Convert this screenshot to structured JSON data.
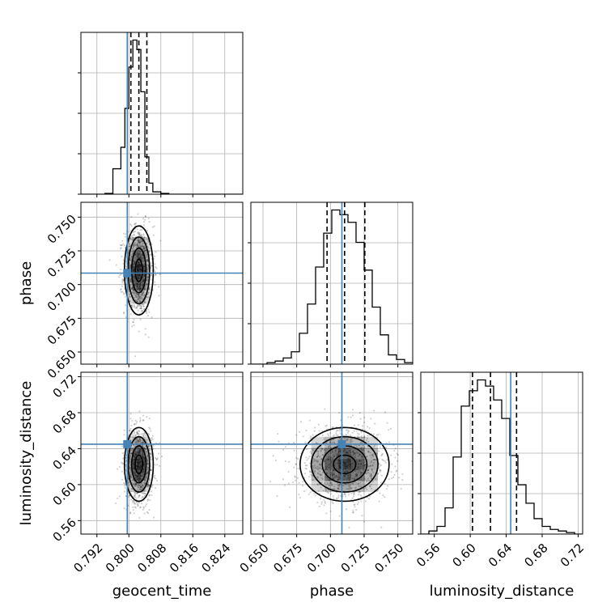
{
  "chart_data": {
    "type": "corner",
    "parameters": [
      "geocent_time",
      "phase",
      "luminosity_distance"
    ],
    "truth_color": "#4682b4",
    "grid": true,
    "ranges": {
      "geocent_time": [
        0.788,
        0.8285
      ],
      "phase": [
        0.641,
        0.761
      ],
      "luminosity_distance": [
        0.545,
        0.725
      ]
    },
    "truths": {
      "geocent_time": 0.7996,
      "phase": 0.7085,
      "luminosity_distance": 0.645
    },
    "quantiles": {
      "geocent_time": [
        0.8005,
        0.8025,
        0.8045
      ],
      "phase": [
        0.6975,
        0.7105,
        0.7255
      ],
      "luminosity_distance": [
        0.6025,
        0.6225,
        0.6515
      ]
    },
    "ticks": {
      "geocent_time": {
        "values": [
          0.792,
          0.8,
          0.808,
          0.816,
          0.824
        ],
        "labels": [
          "0.792",
          "0.800",
          "0.808",
          "0.816",
          "0.824"
        ]
      },
      "phase": {
        "values": [
          0.65,
          0.675,
          0.7,
          0.725,
          0.75
        ],
        "labels": [
          "0.650",
          "0.675",
          "0.700",
          "0.725",
          "0.750"
        ]
      },
      "luminosity_distance": {
        "values": [
          0.56,
          0.6,
          0.64,
          0.68,
          0.72
        ],
        "labels": [
          "0.56",
          "0.60",
          "0.64",
          "0.68",
          "0.72"
        ]
      }
    },
    "histograms": {
      "geocent_time": {
        "edges": [
          0.788,
          0.79,
          0.792,
          0.794,
          0.796,
          0.798,
          0.799,
          0.8,
          0.801,
          0.802,
          0.803,
          0.804,
          0.805,
          0.806,
          0.808,
          0.81,
          0.812,
          0.8285
        ],
        "counts": [
          0,
          0,
          0,
          1,
          32,
          59,
          108,
          160,
          194,
          182,
          129,
          47,
          14,
          3,
          1,
          0,
          0
        ]
      },
      "phase": {
        "edges": [
          0.641,
          0.647,
          0.653,
          0.659,
          0.665,
          0.671,
          0.677,
          0.683,
          0.689,
          0.695,
          0.701,
          0.707,
          0.713,
          0.719,
          0.725,
          0.731,
          0.737,
          0.743,
          0.749,
          0.755,
          0.761
        ],
        "counts": [
          0,
          0,
          1,
          2,
          4,
          8,
          20,
          39,
          63,
          85,
          100,
          97,
          92,
          79,
          61,
          37,
          19,
          6,
          3,
          1
        ]
      },
      "luminosity_distance": {
        "edges": [
          0.545,
          0.554,
          0.563,
          0.572,
          0.581,
          0.59,
          0.599,
          0.608,
          0.617,
          0.626,
          0.635,
          0.644,
          0.653,
          0.662,
          0.671,
          0.68,
          0.689,
          0.698,
          0.707,
          0.716,
          0.725
        ],
        "counts": [
          0,
          2,
          5,
          17,
          50,
          83,
          93,
          100,
          96,
          87,
          75,
          51,
          32,
          20,
          10,
          5,
          3,
          2,
          1,
          0
        ]
      }
    },
    "pairs": [
      {
        "x": "geocent_time",
        "y": "phase",
        "mean": [
          0.8025,
          0.7105
        ],
        "sd": [
          0.0018,
          0.0165
        ],
        "rho": 0.0
      },
      {
        "x": "geocent_time",
        "y": "luminosity_distance",
        "mean": [
          0.8025,
          0.6225
        ],
        "sd": [
          0.0018,
          0.0205
        ],
        "rho": 0.0
      },
      {
        "x": "phase",
        "y": "luminosity_distance",
        "mean": [
          0.7105,
          0.6225
        ],
        "sd": [
          0.0165,
          0.0205
        ],
        "rho": 0.0
      }
    ]
  }
}
